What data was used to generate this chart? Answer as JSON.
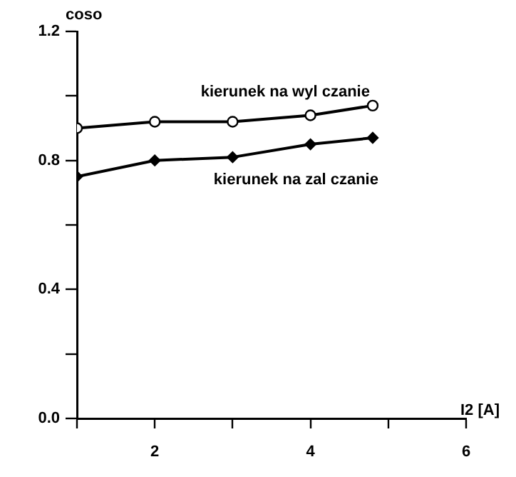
{
  "chart_data": {
    "type": "line",
    "xlabel": "I2 [A]",
    "ylabel": "coso",
    "xlim": [
      1,
      6
    ],
    "xticks": [
      {
        "value": 1,
        "label": null
      },
      2,
      {
        "value": 3,
        "label": null
      },
      4,
      {
        "value": 5,
        "label": null
      },
      6
    ],
    "ylim": [
      0,
      1.2
    ],
    "yticks": [
      {
        "value": 0,
        "label": "0.0"
      },
      {
        "value": 0.2,
        "label": null
      },
      0.4,
      {
        "value": 0.6,
        "label": null
      },
      0.8,
      {
        "value": 1.0,
        "label": null
      },
      1.2
    ],
    "grid": false,
    "legend": false,
    "line_style": "solid",
    "series": [
      {
        "name": "kierunek na wyl czanie",
        "color": "#000000",
        "marker": "circle",
        "x": [
          1,
          2,
          3,
          4,
          4.8
        ],
        "values": [
          0.9,
          0.92,
          0.92,
          0.94,
          0.97
        ]
      },
      {
        "name": "kierunek na zal czanie",
        "color": "#000000",
        "marker": "diamond",
        "x": [
          1,
          2,
          3,
          4,
          4.8
        ],
        "values": [
          0.75,
          0.8,
          0.81,
          0.85,
          0.87
        ]
      }
    ]
  }
}
